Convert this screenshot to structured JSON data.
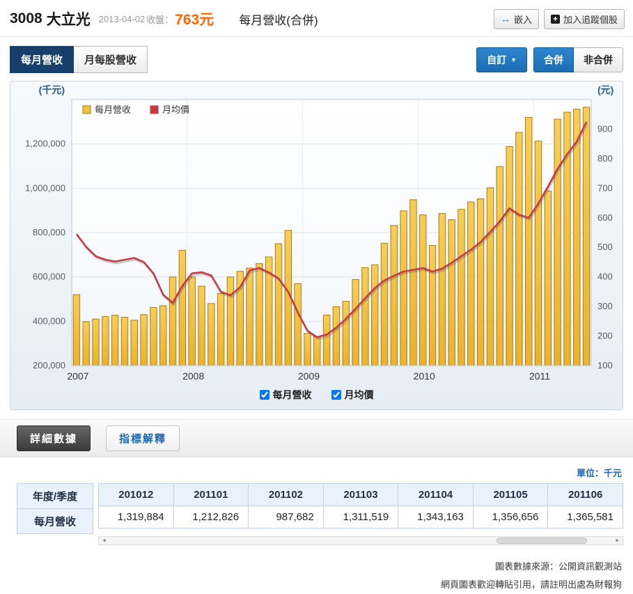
{
  "header": {
    "stock_id": "3008",
    "stock_name": "大立光",
    "date": "2013-04-02",
    "close_label": "收盤：",
    "close_price": "763元",
    "page_title": "每月營收(合併)",
    "embed_button": "嵌入",
    "track_button": "加入追蹤個股"
  },
  "tabs": [
    {
      "label": "每月營收",
      "active": true
    },
    {
      "label": "月每股營收",
      "active": false
    }
  ],
  "controls": {
    "custom_button": "自訂",
    "consolidated_button": "合併",
    "nonconsolidated_button": "非合併"
  },
  "chart": {
    "checkboxes": [
      {
        "label": "每月營收",
        "checked": true
      },
      {
        "label": "月均價",
        "checked": true
      }
    ]
  },
  "chart_data": {
    "type": "bar+line",
    "title": "每月營收(合併)",
    "x_start": "2007-01",
    "x_end": "2011-06",
    "x_tick_labels": [
      "2007",
      "2008",
      "2009",
      "2010",
      "2011"
    ],
    "left_axis": {
      "label": "(千元)",
      "min": 200000,
      "max": 1400000,
      "ticks": [
        200000,
        400000,
        600000,
        800000,
        1000000,
        1200000
      ]
    },
    "right_axis": {
      "label": "(元)",
      "min": 100,
      "max": 1000,
      "ticks": [
        100,
        200,
        300,
        400,
        500,
        600,
        700,
        800,
        900
      ]
    },
    "legend_position": "top-left-inside",
    "grid": true,
    "series": [
      {
        "name": "每月營收",
        "type": "bar",
        "axis": "left",
        "color": "#f0be41",
        "stroke": "#a87c12",
        "values": [
          520000,
          398000,
          410000,
          421000,
          427000,
          418000,
          405000,
          430000,
          462000,
          470000,
          600000,
          720000,
          600000,
          558000,
          480000,
          525000,
          600000,
          625000,
          640000,
          660000,
          690000,
          750000,
          810000,
          570000,
          345000,
          332000,
          428000,
          466000,
          490000,
          588000,
          642000,
          655000,
          752000,
          832000,
          898000,
          948000,
          880000,
          742000,
          886000,
          858000,
          905000,
          938000,
          952000,
          1002000,
          1098000,
          1188000,
          1252000,
          1319884,
          1212826,
          987682,
          1311519,
          1343163,
          1356656,
          1365581
        ]
      },
      {
        "name": "月均價",
        "type": "line",
        "axis": "right",
        "color": "#c23b45",
        "values": [
          545,
          502,
          470,
          458,
          452,
          458,
          464,
          450,
          412,
          340,
          312,
          370,
          412,
          416,
          405,
          350,
          338,
          365,
          422,
          430,
          415,
          395,
          350,
          280,
          218,
          196,
          205,
          228,
          258,
          292,
          328,
          362,
          388,
          404,
          418,
          424,
          430,
          418,
          428,
          448,
          470,
          492,
          518,
          552,
          588,
          632,
          610,
          600,
          648,
          705,
          765,
          815,
          858,
          925
        ]
      }
    ]
  },
  "actions": {
    "detail_button": "詳細數據",
    "explain_button": "指標解釋"
  },
  "table": {
    "unit_label": "單位：千元",
    "corner_header": "年度/季度",
    "row_header": "每月營收",
    "columns": [
      "201012",
      "201101",
      "201102",
      "201103",
      "201104",
      "201105",
      "201106"
    ],
    "values": [
      "1,319,884",
      "1,212,826",
      "987,682",
      "1,311,519",
      "1,343,163",
      "1,356,656",
      "1,365,581"
    ]
  },
  "footer": {
    "source_line": "圖表數據來源：公開資訊觀測站",
    "cite_line": "網頁圖表歡迎轉貼引用，請註明出處為財報狗"
  },
  "colors": {
    "price_orange": "#ff6600",
    "active_tab_navy": "#173f6b",
    "primary_blue_button": "#1e73be",
    "bar_yellow": "#f0be41",
    "bar_border": "#a87c12",
    "line_red": "#c23b45",
    "link_blue": "#1a66b3",
    "table_border_blue": "#bcd2e8",
    "table_header_bg": "#e9f2fa"
  }
}
